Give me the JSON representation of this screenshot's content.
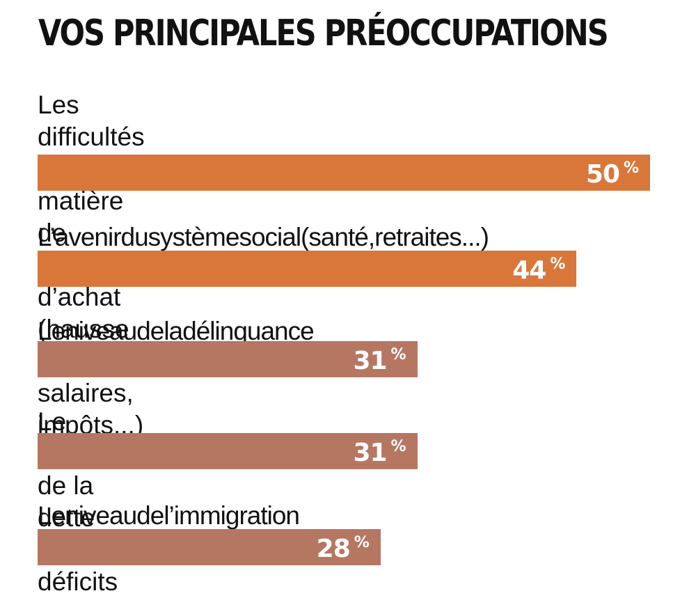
{
  "chart_data": {
    "type": "bar",
    "orientation": "horizontal",
    "title": "VOS PRINCIPALES PRÉOCCUPATIONS",
    "categories": [
      "Les difficultés en matière de pouvoir d’achat\n(hausse des prix, salaires, impôts...)",
      "L’avenirdusystèmesocial(santé,retraites...)",
      "Leniveaudeladélinquance",
      "Le niveau de la dette et des déficits",
      "Leniveaudel’immigration"
    ],
    "values": [
      50,
      44,
      31,
      31,
      28
    ],
    "value_labels": [
      "50",
      "44",
      "31",
      "31",
      "28"
    ],
    "unit": "%",
    "colors": [
      "#d9773a",
      "#d9773a",
      "#b67762",
      "#b67762",
      "#b67762"
    ],
    "xlim": [
      0,
      50
    ],
    "grid": false,
    "legend": "none"
  }
}
